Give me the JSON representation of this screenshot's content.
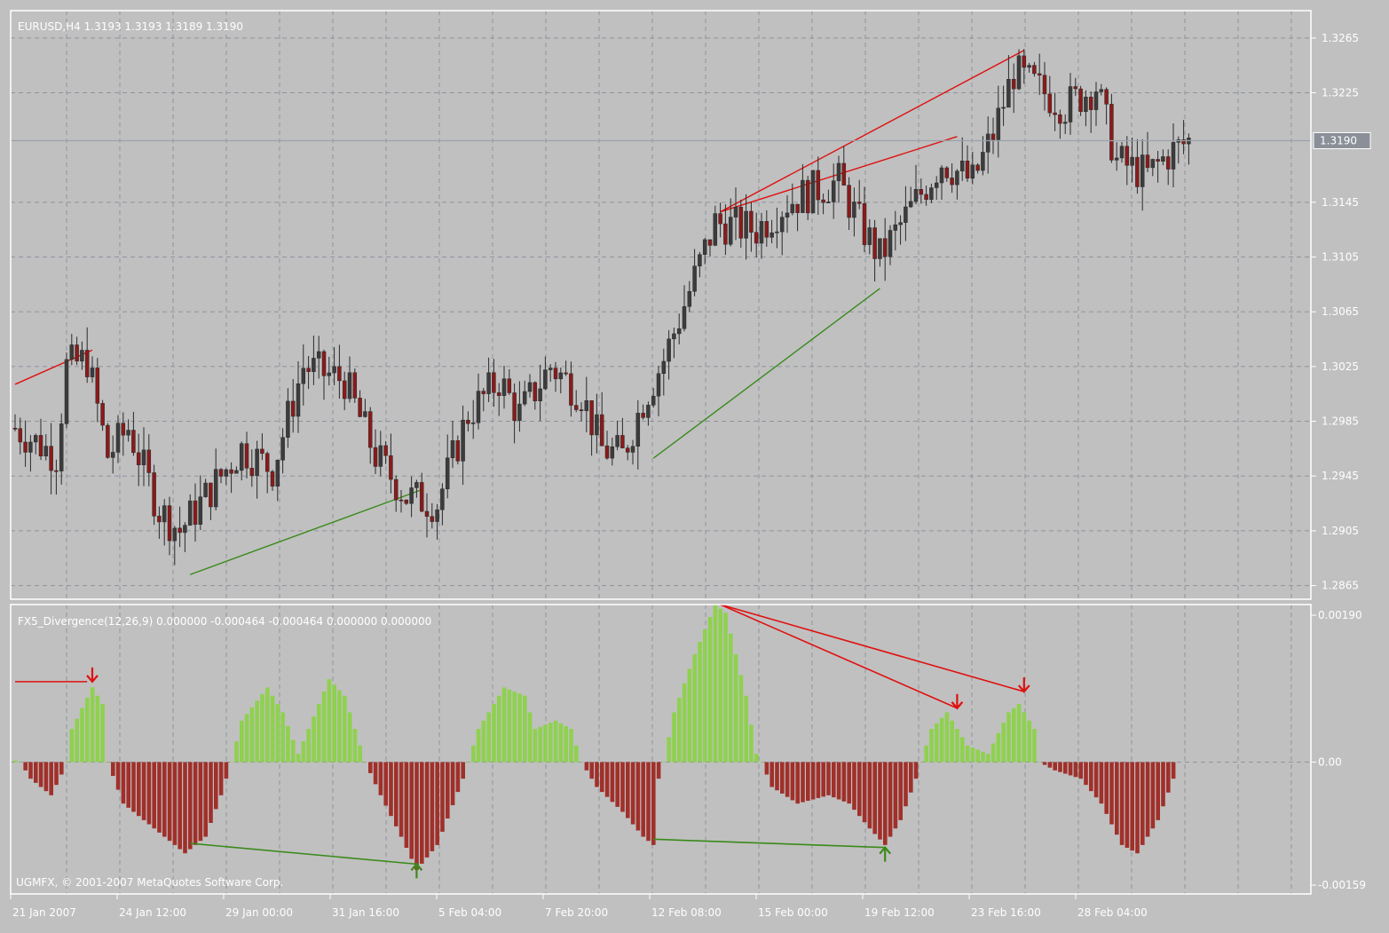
{
  "colors": {
    "background": "#c0c0c0",
    "grid": "#8e939c",
    "border": "#ffffff",
    "text": "#ffffff",
    "bull_candle": "#3c3c3c",
    "bear_candle": "#8b1a1a",
    "hist_positive": "#8fd14f",
    "hist_negative": "#a0302a",
    "bearish_divergence": "#e01010",
    "bullish_divergence": "#3a8a1a",
    "current_price_line": "#9aa0aa",
    "current_price_box": "#8a8f98"
  },
  "chart_data": [
    {
      "type": "candlestick",
      "title": "EURUSD,H4  1.3193 1.3193 1.3189 1.3190",
      "symbol": "EURUSD",
      "timeframe": "H4",
      "ohlc_readout": [
        "1.3193",
        "1.3193",
        "1.3189",
        "1.3190"
      ],
      "ylim": [
        1.2855,
        1.3285
      ],
      "y_ticks": [
        "1.3265",
        "1.3225",
        "1.3145",
        "1.3105",
        "1.3065",
        "1.3025",
        "1.2985",
        "1.2945",
        "1.2905",
        "1.2865"
      ],
      "current_price": "1.3190",
      "x_tick_labels": [
        "21 Jan 2007",
        "24 Jan 12:00",
        "29 Jan 00:00",
        "31 Jan 16:00",
        "5 Feb 04:00",
        "7 Feb 20:00",
        "12 Feb 08:00",
        "15 Feb 00:00",
        "19 Feb 12:00",
        "23 Feb 16:00",
        "28 Feb 04:00"
      ],
      "close_path": [
        [
          0,
          1.298
        ],
        [
          8,
          1.296
        ],
        [
          10,
          1.3025
        ],
        [
          14,
          1.303
        ],
        [
          18,
          1.296
        ],
        [
          22,
          1.298
        ],
        [
          28,
          1.292
        ],
        [
          32,
          1.2905
        ],
        [
          38,
          1.2935
        ],
        [
          44,
          1.2965
        ],
        [
          50,
          1.295
        ],
        [
          56,
          1.3025
        ],
        [
          64,
          1.3015
        ],
        [
          70,
          1.296
        ],
        [
          76,
          1.293
        ],
        [
          82,
          1.2925
        ],
        [
          88,
          1.299
        ],
        [
          94,
          1.3015
        ],
        [
          98,
          1.299
        ],
        [
          104,
          1.3025
        ],
        [
          110,
          1.3005
        ],
        [
          114,
          1.2965
        ],
        [
          118,
          1.296
        ],
        [
          122,
          1.3
        ],
        [
          126,
          1.303
        ],
        [
          132,
          1.309
        ],
        [
          136,
          1.313
        ],
        [
          144,
          1.3125
        ],
        [
          150,
          1.3145
        ],
        [
          156,
          1.3155
        ],
        [
          160,
          1.316
        ],
        [
          164,
          1.313
        ],
        [
          168,
          1.3105
        ],
        [
          174,
          1.314
        ],
        [
          180,
          1.3175
        ],
        [
          186,
          1.316
        ],
        [
          190,
          1.3195
        ],
        [
          194,
          1.324
        ],
        [
          198,
          1.323
        ],
        [
          204,
          1.3215
        ],
        [
          210,
          1.323
        ],
        [
          214,
          1.3175
        ],
        [
          220,
          1.3165
        ],
        [
          224,
          1.318
        ],
        [
          228,
          1.319
        ]
      ],
      "divergence_lines": [
        {
          "kind": "bearish",
          "from": [
            0,
            1.3012
          ],
          "to": [
            15,
            1.3037
          ]
        },
        {
          "kind": "bearish",
          "from": [
            137,
            1.3138
          ],
          "to": [
            196,
            1.3256
          ]
        },
        {
          "kind": "bearish",
          "from": [
            137,
            1.3138
          ],
          "to": [
            183,
            1.3193
          ]
        },
        {
          "kind": "bullish",
          "from": [
            34,
            1.2873
          ],
          "to": [
            79,
            1.2935
          ]
        },
        {
          "kind": "bullish",
          "from": [
            124,
            1.2958
          ],
          "to": [
            168,
            1.3082
          ]
        }
      ]
    },
    {
      "type": "bar",
      "title": "FX5_Divergence(12,26,9) 0.000000 -0.000464 -0.000464 0.000000 0.000000",
      "indicator": "FX5_Divergence(12,26,9)",
      "readout": [
        "0.000000",
        "-0.000464",
        "-0.000464",
        "0.000000",
        "0.000000"
      ],
      "ylim": [
        -0.00159,
        0.0019
      ],
      "y_ticks": [
        "0.00190",
        "0.00",
        "-0.00159"
      ],
      "histogram_profile": [
        [
          0,
          2e-05
        ],
        [
          1,
          0.0
        ],
        [
          3,
          -0.0002
        ],
        [
          7,
          -0.0004
        ],
        [
          9,
          -0.00015
        ],
        [
          10,
          0.0
        ],
        [
          11,
          0.0004
        ],
        [
          15,
          0.0009
        ],
        [
          17,
          0.0007
        ],
        [
          18,
          0.0
        ],
        [
          21,
          -0.0005
        ],
        [
          25,
          -0.0007
        ],
        [
          29,
          -0.0009
        ],
        [
          33,
          -0.0011
        ],
        [
          37,
          -0.0009
        ],
        [
          40,
          -0.0004
        ],
        [
          42,
          0.0
        ],
        [
          44,
          0.0005
        ],
        [
          49,
          0.0009
        ],
        [
          52,
          0.0006
        ],
        [
          55,
          0.0001
        ],
        [
          57,
          0.0004
        ],
        [
          61,
          0.001
        ],
        [
          64,
          0.0008
        ],
        [
          68,
          0.0
        ],
        [
          71,
          -0.0004
        ],
        [
          75,
          -0.0009
        ],
        [
          78,
          -0.0013
        ],
        [
          82,
          -0.001
        ],
        [
          87,
          -0.0002
        ],
        [
          88,
          0.0
        ],
        [
          90,
          0.0004
        ],
        [
          95,
          0.0009
        ],
        [
          99,
          0.0008
        ],
        [
          101,
          0.0004
        ],
        [
          105,
          0.0005
        ],
        [
          108,
          0.0004
        ],
        [
          110,
          0.0
        ],
        [
          113,
          -0.0003
        ],
        [
          118,
          -0.0006
        ],
        [
          122,
          -0.0009
        ],
        [
          124,
          -0.001
        ],
        [
          125,
          -0.0002
        ],
        [
          126,
          0.0
        ],
        [
          128,
          0.0006
        ],
        [
          132,
          0.0013
        ],
        [
          136,
          0.0019
        ],
        [
          138,
          0.0018
        ],
        [
          142,
          0.0008
        ],
        [
          144,
          0.0001
        ],
        [
          145,
          0.0
        ],
        [
          147,
          -0.0003
        ],
        [
          152,
          -0.0005
        ],
        [
          158,
          -0.0004
        ],
        [
          162,
          -0.0005
        ],
        [
          166,
          -0.0008
        ],
        [
          169,
          -0.001
        ],
        [
          172,
          -0.0007
        ],
        [
          175,
          -0.0002
        ],
        [
          176,
          0.0
        ],
        [
          178,
          0.0004
        ],
        [
          181,
          0.0006
        ],
        [
          185,
          0.0002
        ],
        [
          189,
          0.0001
        ],
        [
          193,
          0.0006
        ],
        [
          195,
          0.0007
        ],
        [
          198,
          0.0004
        ],
        [
          199,
          0.0
        ],
        [
          202,
          -0.0001
        ],
        [
          207,
          -0.0002
        ],
        [
          211,
          -0.0005
        ],
        [
          215,
          -0.001
        ],
        [
          218,
          -0.0011
        ],
        [
          222,
          -0.0007
        ],
        [
          225,
          -0.0002
        ]
      ],
      "divergence_lines": [
        {
          "kind": "bearish",
          "from": [
            0,
            0.00097
          ],
          "to": [
            14,
            0.00097
          ]
        },
        {
          "kind": "bearish",
          "from": [
            137,
            0.0019
          ],
          "to": [
            183,
            0.00065
          ]
        },
        {
          "kind": "bearish",
          "from": [
            137,
            0.0019
          ],
          "to": [
            196,
            0.00085
          ]
        },
        {
          "kind": "bullish",
          "from": [
            34,
            -0.00098
          ],
          "to": [
            78,
            -0.00123
          ]
        },
        {
          "kind": "bullish",
          "from": [
            124,
            -0.00093
          ],
          "to": [
            169,
            -0.00103
          ]
        }
      ],
      "arrows": [
        {
          "kind": "sell",
          "bar": 15,
          "value": 0.00097
        },
        {
          "kind": "sell",
          "bar": 183,
          "value": 0.00065
        },
        {
          "kind": "sell",
          "bar": 196,
          "value": 0.00085
        },
        {
          "kind": "buy",
          "bar": 78,
          "value": -0.00123
        },
        {
          "kind": "buy",
          "bar": 169,
          "value": -0.00103
        }
      ]
    }
  ],
  "copyright": "UGMFX, © 2001-2007 MetaQuotes Software Corp."
}
